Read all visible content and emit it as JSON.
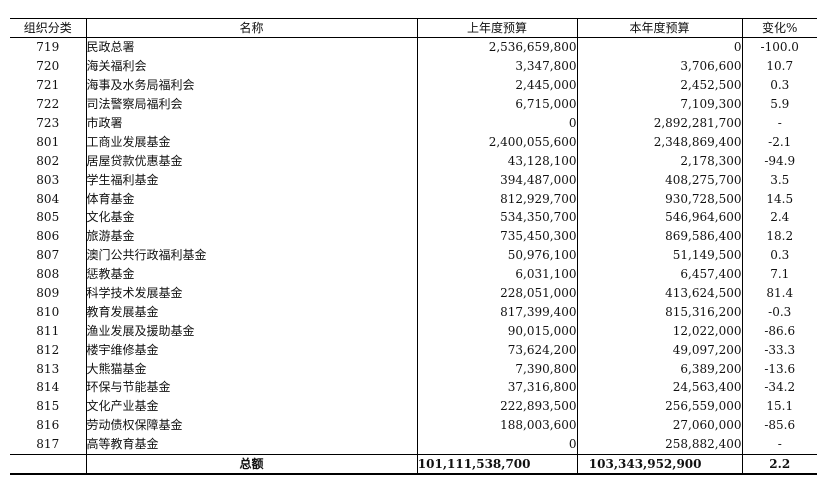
{
  "headers": {
    "code": "组织分类",
    "name": "名称",
    "prev": "上年度预算",
    "curr": "本年度预算",
    "change": "变化%"
  },
  "rows": [
    {
      "code": "719",
      "name": "民政总署",
      "prev": "2,536,659,800",
      "curr": "0",
      "change": "-100.0"
    },
    {
      "code": "720",
      "name": "海关福利会",
      "prev": "3,347,800",
      "curr": "3,706,600",
      "change": "10.7"
    },
    {
      "code": "721",
      "name": "海事及水务局福利会",
      "prev": "2,445,000",
      "curr": "2,452,500",
      "change": "0.3"
    },
    {
      "code": "722",
      "name": "司法警察局福利会",
      "prev": "6,715,000",
      "curr": "7,109,300",
      "change": "5.9"
    },
    {
      "code": "723",
      "name": "市政署",
      "prev": "0",
      "curr": "2,892,281,700",
      "change": "-"
    },
    {
      "code": "801",
      "name": "工商业发展基金",
      "prev": "2,400,055,600",
      "curr": "2,348,869,400",
      "change": "-2.1"
    },
    {
      "code": "802",
      "name": "居屋贷款优惠基金",
      "prev": "43,128,100",
      "curr": "2,178,300",
      "change": "-94.9"
    },
    {
      "code": "803",
      "name": "学生福利基金",
      "prev": "394,487,000",
      "curr": "408,275,700",
      "change": "3.5"
    },
    {
      "code": "804",
      "name": "体育基金",
      "prev": "812,929,700",
      "curr": "930,728,500",
      "change": "14.5"
    },
    {
      "code": "805",
      "name": "文化基金",
      "prev": "534,350,700",
      "curr": "546,964,600",
      "change": "2.4"
    },
    {
      "code": "806",
      "name": "旅游基金",
      "prev": "735,450,300",
      "curr": "869,586,400",
      "change": "18.2"
    },
    {
      "code": "807",
      "name": "澳门公共行政福利基金",
      "prev": "50,976,100",
      "curr": "51,149,500",
      "change": "0.3"
    },
    {
      "code": "808",
      "name": "惩教基金",
      "prev": "6,031,100",
      "curr": "6,457,400",
      "change": "7.1"
    },
    {
      "code": "809",
      "name": "科学技术发展基金",
      "prev": "228,051,000",
      "curr": "413,624,500",
      "change": "81.4"
    },
    {
      "code": "810",
      "name": "教育发展基金",
      "prev": "817,399,400",
      "curr": "815,316,200",
      "change": "-0.3"
    },
    {
      "code": "811",
      "name": "渔业发展及援助基金",
      "prev": "90,015,000",
      "curr": "12,022,000",
      "change": "-86.6"
    },
    {
      "code": "812",
      "name": "楼宇维修基金",
      "prev": "73,624,200",
      "curr": "49,097,200",
      "change": "-33.3"
    },
    {
      "code": "813",
      "name": "大熊猫基金",
      "prev": "7,390,800",
      "curr": "6,389,200",
      "change": "-13.6"
    },
    {
      "code": "814",
      "name": "环保与节能基金",
      "prev": "37,316,800",
      "curr": "24,563,400",
      "change": "-34.2"
    },
    {
      "code": "815",
      "name": "文化产业基金",
      "prev": "222,893,500",
      "curr": "256,559,000",
      "change": "15.1"
    },
    {
      "code": "816",
      "name": "劳动债权保障基金",
      "prev": "188,003,600",
      "curr": "27,060,000",
      "change": "-85.6"
    },
    {
      "code": "817",
      "name": "高等教育基金",
      "prev": "0",
      "curr": "258,882,400",
      "change": "-"
    }
  ],
  "total": {
    "label": "总额",
    "prev": "101,111,538,700",
    "curr": "103,343,952,900",
    "change": "2.2"
  }
}
